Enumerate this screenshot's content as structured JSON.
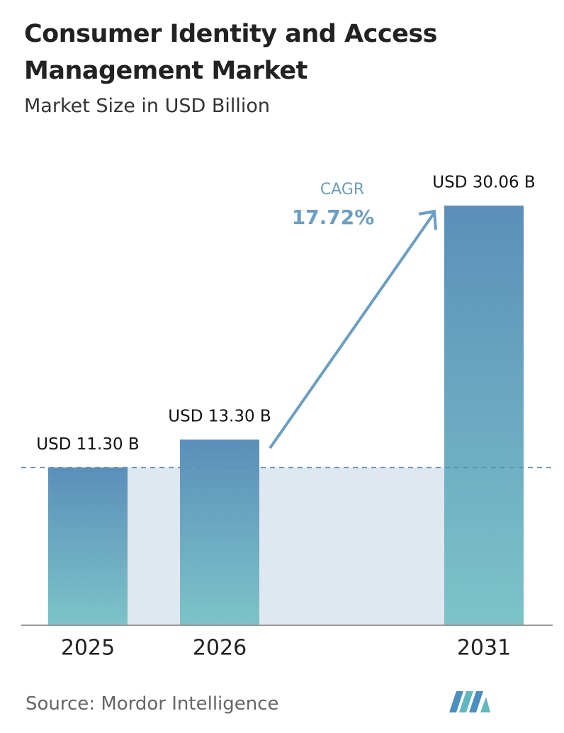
{
  "chart_data": {
    "type": "bar",
    "title": "Consumer Identity and Access Management Market",
    "subtitle": "Market Size in USD Billion",
    "categories": [
      "2025",
      "2026",
      "2031"
    ],
    "values": [
      11.3,
      13.3,
      30.06
    ],
    "value_labels": [
      "USD 11.30 B",
      "USD 13.30 B",
      "USD 30.06 B"
    ],
    "color": [
      "#5b8fba",
      "#7dc3c8"
    ],
    "annotation": {
      "label": "CAGR",
      "text": "17.72%"
    },
    "source": "Source:  Mordor Intelligence"
  }
}
